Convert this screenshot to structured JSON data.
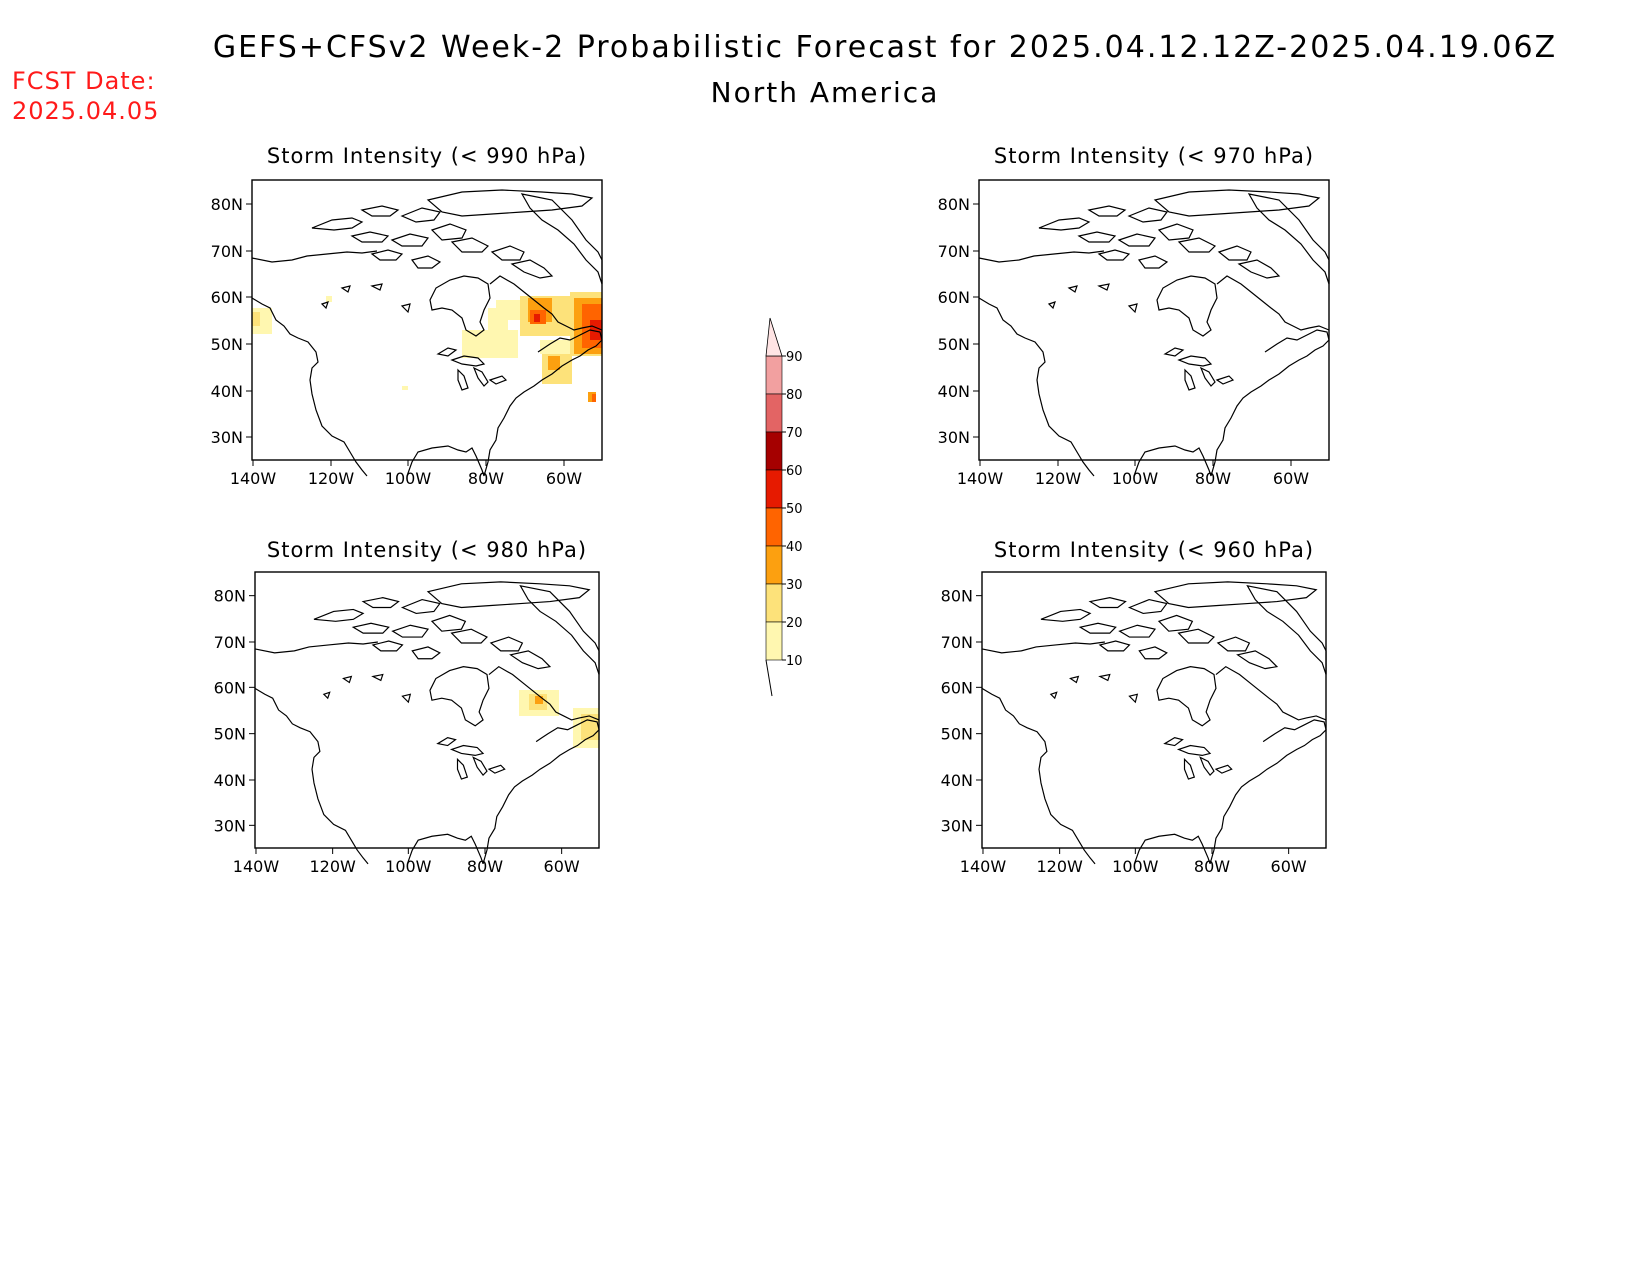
{
  "header": {
    "title": "GEFS+CFSv2 Week-2 Probabilistic Forecast for 2025.04.12.12Z-2025.04.19.06Z",
    "subtitle": "North America",
    "fcst_label": "FCST Date:",
    "fcst_date": "2025.04.05"
  },
  "colors": {
    "c10": "#fff7b0",
    "c20": "#fde27a",
    "c30": "#fca010",
    "c40": "#ff6400",
    "c50": "#e61a00",
    "c60": "#a50000",
    "c70": "#e36464",
    "c80": "#f2a0a0",
    "c90": "#ffe4e4"
  },
  "panels": [
    {
      "id": "p990",
      "title": "Storm Intensity (< 990 hPa)"
    },
    {
      "id": "p970",
      "title": "Storm Intensity (< 970 hPa)"
    },
    {
      "id": "p980",
      "title": "Storm Intensity (< 980 hPa)"
    },
    {
      "id": "p960",
      "title": "Storm Intensity (< 960 hPa)"
    }
  ],
  "axes": {
    "lat_labels": [
      "80N",
      "70N",
      "60N",
      "50N",
      "40N",
      "30N"
    ],
    "lon_labels": [
      "140W",
      "120W",
      "100W",
      "80W",
      "60W"
    ]
  },
  "colorbar": {
    "labels": [
      "90",
      "80",
      "70",
      "60",
      "50",
      "40",
      "30",
      "20",
      "10"
    ]
  }
}
